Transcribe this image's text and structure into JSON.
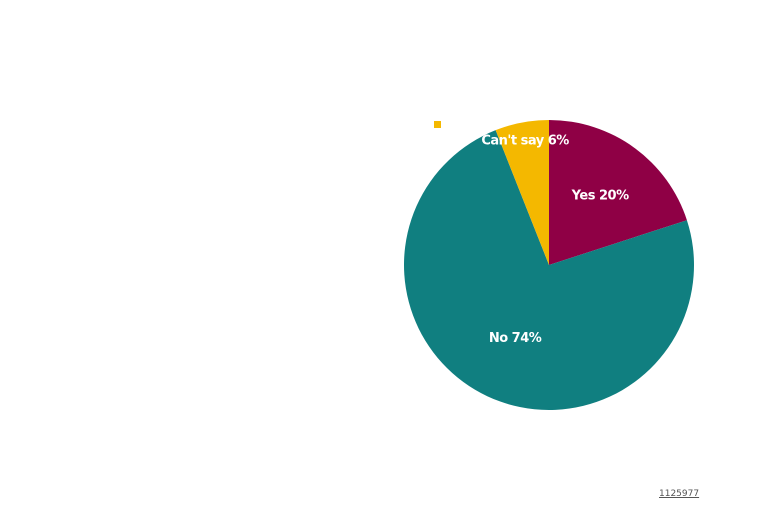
{
  "chart_data": {
    "type": "pie",
    "title": "",
    "legend": "top-left",
    "slices": [
      {
        "label": "Yes",
        "value": 20,
        "data_label": "Yes 20%",
        "color": "#8f0045"
      },
      {
        "label": "No",
        "value": 74,
        "data_label": "No 74%",
        "color": "#107f80"
      },
      {
        "label": "Can't say",
        "value": 6,
        "data_label": "Can't say 6%",
        "color": "#f4b800"
      }
    ]
  },
  "footer": {
    "id": "1125977"
  },
  "colors": {
    "background": "#ffffff",
    "label_text": "#ffffff"
  }
}
